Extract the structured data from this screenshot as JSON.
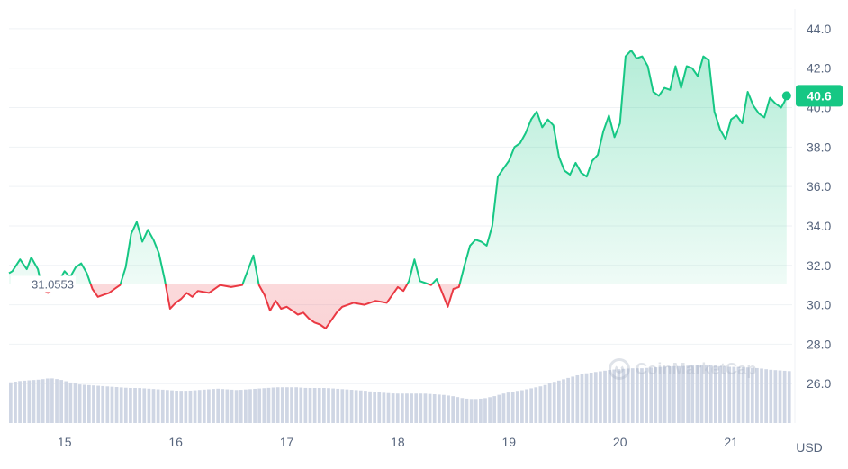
{
  "chart_data": {
    "type": "line",
    "currency_label": "USD",
    "baseline_value": 31.0553,
    "baseline_label": "31.0553",
    "last_price_label": "40.6",
    "last_price": 40.6,
    "watermark": "CoinMarketCap",
    "ylim": [
      24.0,
      45.0
    ],
    "y_ticks": [
      26.0,
      28.0,
      30.0,
      32.0,
      34.0,
      36.0,
      38.0,
      40.0,
      42.0,
      44.0
    ],
    "y_tick_labels": [
      "26.0",
      "28.0",
      "30.0",
      "32.0",
      "34.0",
      "36.0",
      "38.0",
      "40.0",
      "42.0",
      "44.0"
    ],
    "x_domain": [
      14.5,
      21.55
    ],
    "x_ticks": [
      15,
      16,
      17,
      18,
      19,
      20,
      21
    ],
    "x_tick_labels": [
      "15",
      "16",
      "17",
      "18",
      "19",
      "20",
      "21"
    ],
    "colors": {
      "up": "#16c784",
      "down": "#ea3943",
      "volume": "#cfd6e4",
      "grid": "#eff2f5",
      "badge": "#16c784"
    },
    "series": [
      {
        "x": [
          14.5,
          14.53,
          14.6,
          14.66,
          14.7,
          14.76,
          14.8,
          14.85,
          14.9,
          14.95,
          15.0,
          15.05,
          15.1,
          15.15,
          15.2,
          15.25,
          15.3,
          15.35,
          15.4,
          15.45,
          15.5,
          15.55,
          15.6,
          15.65,
          15.7,
          15.75,
          15.8,
          15.85,
          15.9,
          15.95,
          16.0,
          16.05,
          16.1,
          16.15,
          16.2,
          16.3,
          16.4,
          16.5,
          16.6,
          16.7,
          16.75,
          16.8,
          16.85,
          16.9,
          16.95,
          17.0,
          17.05,
          17.1,
          17.15,
          17.2,
          17.25,
          17.3,
          17.35,
          17.4,
          17.45,
          17.5,
          17.6,
          17.7,
          17.8,
          17.9,
          18.0,
          18.05,
          18.1,
          18.15,
          18.2,
          18.25,
          18.3,
          18.35,
          18.4,
          18.45,
          18.5,
          18.55,
          18.6,
          18.65,
          18.7,
          18.75,
          18.8,
          18.85,
          18.9,
          18.95,
          19.0,
          19.05,
          19.1,
          19.15,
          19.2,
          19.25,
          19.3,
          19.35,
          19.4,
          19.45,
          19.5,
          19.55,
          19.6,
          19.65,
          19.7,
          19.75,
          19.8,
          19.85,
          19.9,
          19.95,
          20.0,
          20.05,
          20.1,
          20.15,
          20.2,
          20.25,
          20.3,
          20.35,
          20.4,
          20.45,
          20.5,
          20.55,
          20.6,
          20.65,
          20.7,
          20.75,
          20.8,
          20.85,
          20.9,
          20.95,
          21.0,
          21.05,
          21.1,
          21.15,
          21.2,
          21.25,
          21.3,
          21.35,
          21.4,
          21.45,
          21.48,
          21.5
        ],
        "values": [
          31.6,
          31.7,
          32.3,
          31.8,
          32.4,
          31.8,
          30.8,
          30.6,
          30.8,
          31.2,
          31.7,
          31.4,
          31.9,
          32.1,
          31.6,
          30.8,
          30.4,
          30.5,
          30.6,
          30.8,
          31.0,
          31.9,
          33.6,
          34.2,
          33.2,
          33.8,
          33.3,
          32.6,
          31.3,
          29.8,
          30.1,
          30.3,
          30.6,
          30.4,
          30.7,
          30.6,
          31.0,
          30.9,
          31.0,
          32.5,
          31.0,
          30.5,
          29.7,
          30.2,
          29.8,
          29.9,
          29.7,
          29.5,
          29.6,
          29.3,
          29.1,
          29.0,
          28.8,
          29.2,
          29.6,
          29.9,
          30.1,
          30.0,
          30.2,
          30.1,
          30.9,
          30.7,
          31.2,
          32.3,
          31.2,
          31.1,
          31.0,
          31.3,
          30.6,
          29.9,
          30.8,
          30.9,
          32.0,
          33.0,
          33.3,
          33.2,
          33.0,
          34.0,
          36.5,
          36.9,
          37.3,
          38.0,
          38.2,
          38.7,
          39.4,
          39.8,
          39.0,
          39.4,
          39.1,
          37.5,
          36.8,
          36.6,
          37.2,
          36.7,
          36.5,
          37.3,
          37.6,
          38.8,
          39.6,
          38.5,
          39.2,
          42.6,
          42.9,
          42.5,
          42.6,
          42.1,
          40.8,
          40.6,
          41.0,
          40.9,
          42.1,
          41.0,
          42.1,
          42.0,
          41.6,
          42.6,
          42.4,
          39.8,
          38.9,
          38.4,
          39.4,
          39.6,
          39.2,
          40.8,
          40.1,
          39.7,
          39.5,
          40.5,
          40.2,
          40.0,
          40.3,
          40.6
        ]
      }
    ],
    "volume": [
      0.58,
      0.6,
      0.61,
      0.62,
      0.64,
      0.62,
      0.58,
      0.55,
      0.54,
      0.53,
      0.52,
      0.51,
      0.5,
      0.5,
      0.49,
      0.48,
      0.47,
      0.46,
      0.46,
      0.47,
      0.48,
      0.49,
      0.48,
      0.47,
      0.48,
      0.49,
      0.5,
      0.51,
      0.51,
      0.51,
      0.5,
      0.5,
      0.5,
      0.49,
      0.48,
      0.47,
      0.46,
      0.44,
      0.43,
      0.42,
      0.42,
      0.42,
      0.42,
      0.41,
      0.4,
      0.38,
      0.35,
      0.34,
      0.35,
      0.38,
      0.42,
      0.45,
      0.47,
      0.5,
      0.53,
      0.58,
      0.62,
      0.66,
      0.7,
      0.72,
      0.74,
      0.76,
      0.77,
      0.78,
      0.78,
      0.79,
      0.8,
      0.81,
      0.81,
      0.82,
      0.82,
      0.82,
      0.81,
      0.8,
      0.8,
      0.79,
      0.78,
      0.76,
      0.75,
      0.74
    ]
  }
}
